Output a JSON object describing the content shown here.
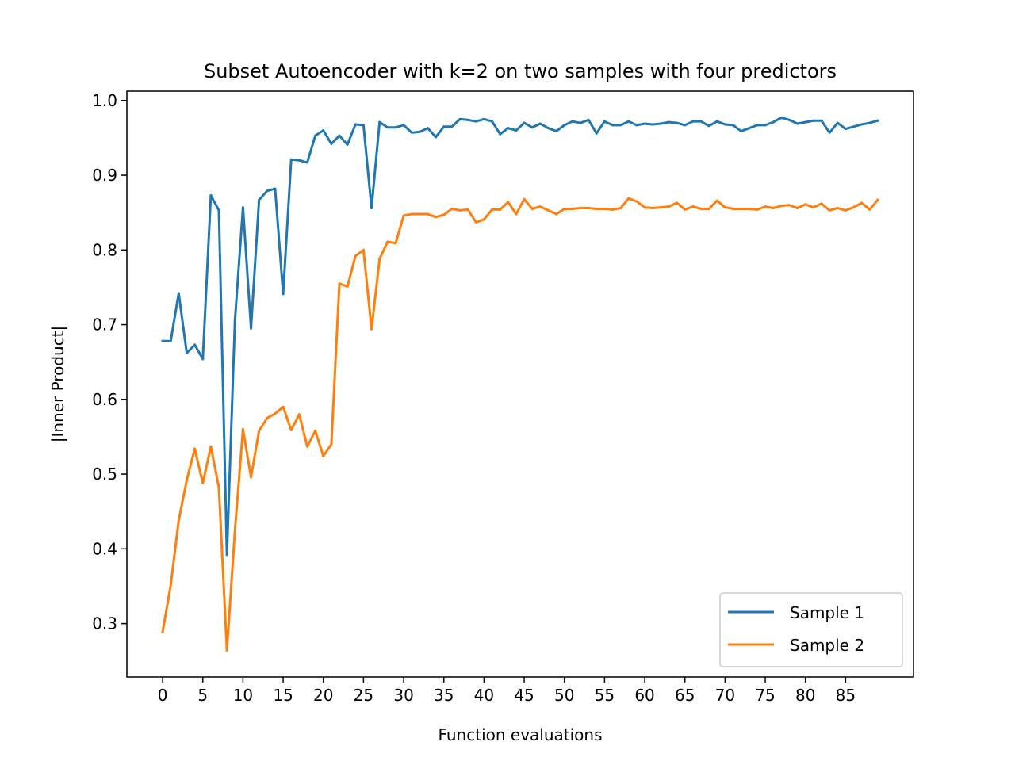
{
  "chart_data": {
    "type": "line",
    "title": "Subset Autoencoder with k=2 on two samples with four predictors",
    "xlabel": "Function evaluations",
    "ylabel": "|Inner Product|",
    "xlim": [
      -4.45,
      93.45
    ],
    "ylim": [
      0.2285,
      1.0125
    ],
    "xticks": [
      0,
      5,
      10,
      15,
      20,
      25,
      30,
      35,
      40,
      45,
      50,
      55,
      60,
      65,
      70,
      75,
      80,
      85
    ],
    "xtick_labels": [
      "0",
      "5",
      "10",
      "15",
      "20",
      "25",
      "30",
      "35",
      "40",
      "45",
      "50",
      "55",
      "60",
      "65",
      "70",
      "75",
      "80",
      "85"
    ],
    "yticks": [
      0.3,
      0.4,
      0.5,
      0.6,
      0.7,
      0.8,
      0.9,
      1.0
    ],
    "ytick_labels": [
      "0.3",
      "0.4",
      "0.5",
      "0.6",
      "0.7",
      "0.8",
      "0.9",
      "1.0"
    ],
    "grid": false,
    "legend_position": "lower-right",
    "x": [
      0,
      1,
      2,
      3,
      4,
      5,
      6,
      7,
      8,
      9,
      10,
      11,
      12,
      13,
      14,
      15,
      16,
      17,
      18,
      19,
      20,
      21,
      22,
      23,
      24,
      25,
      26,
      27,
      28,
      29,
      30,
      31,
      32,
      33,
      34,
      35,
      36,
      37,
      38,
      39,
      40,
      41,
      42,
      43,
      44,
      45,
      46,
      47,
      48,
      49,
      50,
      51,
      52,
      53,
      54,
      55,
      56,
      57,
      58,
      59,
      60,
      61,
      62,
      63,
      64,
      65,
      66,
      67,
      68,
      69,
      70,
      71,
      72,
      73,
      74,
      75,
      76,
      77,
      78,
      79,
      80,
      81,
      82,
      83,
      84,
      85,
      86,
      87,
      88,
      89
    ],
    "series": [
      {
        "name": "Sample 1",
        "color": "#1f77b4",
        "values": [
          0.678,
          0.678,
          0.742,
          0.662,
          0.673,
          0.654,
          0.873,
          0.853,
          0.392,
          0.706,
          0.857,
          0.695,
          0.867,
          0.879,
          0.882,
          0.741,
          0.921,
          0.92,
          0.917,
          0.953,
          0.96,
          0.942,
          0.953,
          0.941,
          0.968,
          0.967,
          0.856,
          0.971,
          0.964,
          0.964,
          0.967,
          0.957,
          0.958,
          0.963,
          0.951,
          0.965,
          0.965,
          0.975,
          0.974,
          0.972,
          0.975,
          0.972,
          0.955,
          0.963,
          0.96,
          0.97,
          0.964,
          0.969,
          0.963,
          0.959,
          0.967,
          0.972,
          0.97,
          0.974,
          0.956,
          0.972,
          0.967,
          0.967,
          0.972,
          0.967,
          0.969,
          0.968,
          0.969,
          0.971,
          0.97,
          0.967,
          0.972,
          0.972,
          0.966,
          0.972,
          0.968,
          0.967,
          0.959,
          0.963,
          0.967,
          0.967,
          0.971,
          0.977,
          0.974,
          0.969,
          0.971,
          0.973,
          0.973,
          0.957,
          0.97,
          0.962,
          0.965,
          0.968,
          0.97,
          0.973
        ]
      },
      {
        "name": "Sample 2",
        "color": "#ff7f0e",
        "values": [
          0.289,
          0.351,
          0.438,
          0.492,
          0.534,
          0.488,
          0.537,
          0.482,
          0.264,
          0.425,
          0.56,
          0.496,
          0.558,
          0.575,
          0.581,
          0.59,
          0.559,
          0.58,
          0.537,
          0.558,
          0.524,
          0.54,
          0.755,
          0.751,
          0.792,
          0.8,
          0.694,
          0.788,
          0.811,
          0.809,
          0.846,
          0.848,
          0.848,
          0.848,
          0.844,
          0.847,
          0.855,
          0.853,
          0.854,
          0.837,
          0.841,
          0.854,
          0.854,
          0.864,
          0.848,
          0.868,
          0.855,
          0.858,
          0.853,
          0.848,
          0.855,
          0.855,
          0.856,
          0.856,
          0.855,
          0.855,
          0.854,
          0.856,
          0.869,
          0.865,
          0.857,
          0.856,
          0.857,
          0.858,
          0.863,
          0.854,
          0.858,
          0.855,
          0.855,
          0.866,
          0.857,
          0.855,
          0.855,
          0.855,
          0.854,
          0.858,
          0.856,
          0.859,
          0.86,
          0.856,
          0.861,
          0.857,
          0.862,
          0.853,
          0.856,
          0.853,
          0.857,
          0.863,
          0.854,
          0.867
        ]
      }
    ]
  }
}
